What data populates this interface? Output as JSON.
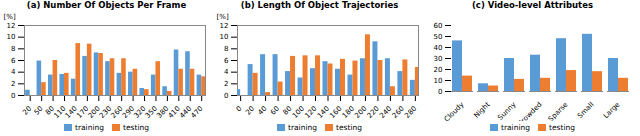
{
  "chart_data": [
    {
      "type": "bar",
      "title": "(a) Number Of Objects Per Frame",
      "ylabel": "[%]",
      "x": [
        20,
        50,
        80,
        110,
        140,
        170,
        200,
        230,
        260,
        290,
        320,
        350,
        380,
        410,
        440,
        470
      ],
      "xlim": [
        5,
        480
      ],
      "xticks": [
        20,
        50,
        80,
        110,
        140,
        170,
        200,
        230,
        260,
        290,
        320,
        350,
        380,
        410,
        440,
        470
      ],
      "ylim": [
        0,
        12
      ],
      "yticks": [
        0,
        2,
        4,
        6,
        8,
        10,
        12
      ],
      "series": [
        {
          "name": "training",
          "color": "#5b9bd5",
          "values": [
            0.9,
            5.9,
            3.5,
            3.6,
            2.8,
            6.7,
            7.3,
            5.8,
            3.8,
            4.0,
            1.2,
            3.5,
            1.5,
            7.8,
            7.5,
            3.5
          ]
        },
        {
          "name": "testing",
          "color": "#ed7d31",
          "values": [
            0.0,
            2.2,
            6.0,
            3.8,
            8.9,
            8.8,
            7.2,
            6.3,
            6.3,
            4.5,
            1.0,
            5.8,
            0.7,
            4.5,
            4.5,
            3.2
          ]
        }
      ],
      "grid": false,
      "legend": "bottom"
    },
    {
      "type": "bar",
      "title": "(b) Length Of Object Trajectories",
      "ylabel": "[%]",
      "x": [
        0,
        20,
        40,
        60,
        80,
        100,
        120,
        140,
        160,
        180,
        200,
        220,
        240,
        260,
        280
      ],
      "xlim": [
        -5,
        285
      ],
      "xticks": [
        0,
        20,
        40,
        60,
        80,
        100,
        120,
        140,
        160,
        180,
        200,
        220,
        240,
        260,
        280
      ],
      "ylim": [
        0,
        12
      ],
      "yticks": [
        0,
        2,
        4,
        6,
        8,
        10,
        12
      ],
      "series": [
        {
          "name": "training",
          "color": "#5b9bd5",
          "values": [
            1.0,
            5.3,
            7.0,
            7.0,
            4.1,
            3.0,
            4.6,
            5.8,
            4.5,
            3.5,
            6.3,
            9.2,
            6.3,
            4.1,
            2.6
          ]
        },
        {
          "name": "testing",
          "color": "#ed7d31",
          "values": [
            0.0,
            3.8,
            0.5,
            2.3,
            6.7,
            6.8,
            6.8,
            5.4,
            6.2,
            5.9,
            10.4,
            6.0,
            1.5,
            6.1,
            4.8
          ]
        }
      ],
      "grid": false,
      "legend": "bottom"
    },
    {
      "type": "bar",
      "title": "(c) Video-level Attributes",
      "categories": [
        "Cloudy",
        "Night",
        "Sunny",
        "Crowded",
        "Sparse",
        "Small",
        "Large"
      ],
      "ylim": [
        0,
        60
      ],
      "yticks": [
        0,
        10,
        20,
        30,
        40,
        50,
        60
      ],
      "series": [
        {
          "name": "training",
          "color": "#5b9bd5",
          "values": [
            46,
            7,
            30,
            33,
            48,
            52,
            30
          ]
        },
        {
          "name": "testing",
          "color": "#ed7d31",
          "values": [
            14,
            5,
            11,
            12,
            19,
            18,
            12
          ]
        }
      ],
      "grid": false,
      "legend": "bottom"
    }
  ]
}
